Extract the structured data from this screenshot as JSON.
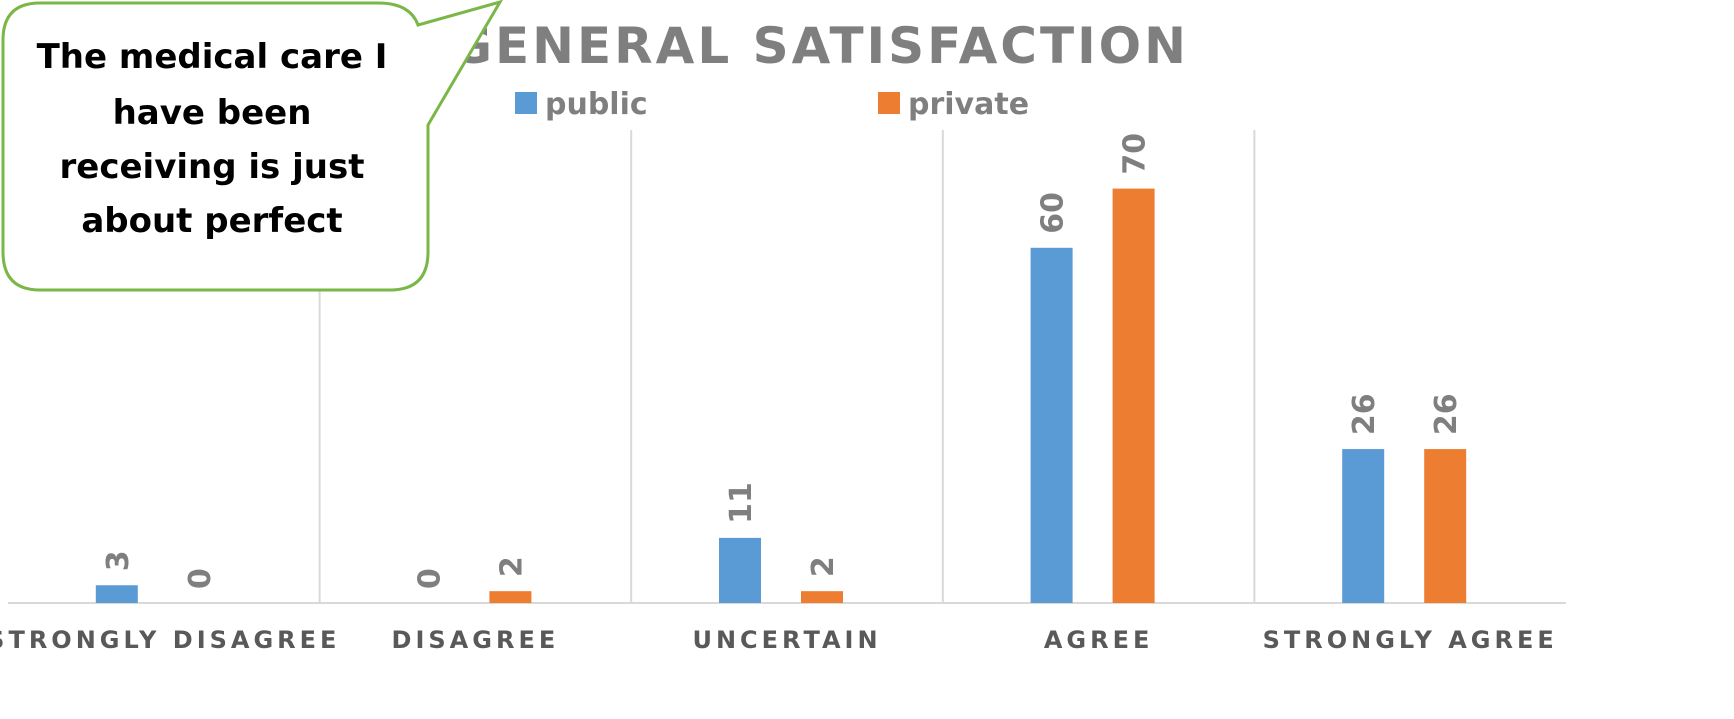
{
  "chart_data": {
    "type": "bar",
    "title": "GENERAL SATISFACTION",
    "categories": [
      "STRONGLY DISAGREE",
      "DISAGREE",
      "UNCERTAIN",
      "AGREE",
      "STRONGLY AGREE"
    ],
    "series": [
      {
        "name": "public",
        "color": "#5b9bd5",
        "values": [
          3,
          0,
          11,
          60,
          26
        ]
      },
      {
        "name": "private",
        "color": "#ed7d31",
        "values": [
          0,
          2,
          2,
          70,
          26
        ]
      }
    ],
    "ylim": [
      0,
      80
    ],
    "grid": "vertical category separators",
    "legend_position": "top",
    "data_labels": "vertical, above bars"
  },
  "callout": {
    "lines": [
      "The medical care I",
      "have been",
      "receiving is just",
      "about perfect"
    ],
    "border_color": "#7ab648"
  }
}
